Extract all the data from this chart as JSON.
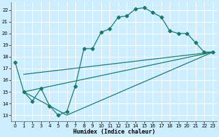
{
  "xlabel": "Humidex (Indice chaleur)",
  "background_color": "#cceeff",
  "grid_color": "#ffffff",
  "line_color": "#1a7a6a",
  "xlim": [
    -0.5,
    23.5
  ],
  "ylim": [
    12.5,
    22.7
  ],
  "xticks": [
    0,
    1,
    2,
    3,
    4,
    5,
    6,
    7,
    8,
    9,
    10,
    11,
    12,
    13,
    14,
    15,
    16,
    17,
    18,
    19,
    20,
    21,
    22,
    23
  ],
  "yticks": [
    13,
    14,
    15,
    16,
    17,
    18,
    19,
    20,
    21,
    22
  ],
  "curve1_x": [
    0,
    1,
    2,
    3,
    4,
    5,
    6,
    7,
    8,
    9,
    10,
    11,
    12,
    13,
    14,
    15,
    16,
    17,
    18,
    19,
    20,
    21,
    22,
    23
  ],
  "curve1_y": [
    17.5,
    15.0,
    14.2,
    15.3,
    13.8,
    13.0,
    13.3,
    15.5,
    18.7,
    18.7,
    20.1,
    20.4,
    21.4,
    21.5,
    22.1,
    22.2,
    21.8,
    21.4,
    20.2,
    20.0,
    20.0,
    19.2,
    18.4,
    18.4
  ],
  "line1_x": [
    1,
    23
  ],
  "line1_y": [
    15.0,
    18.4
  ],
  "line2_x": [
    1,
    6,
    23
  ],
  "line2_y": [
    15.0,
    13.0,
    18.4
  ],
  "line3_x": [
    1,
    23
  ],
  "line3_y": [
    16.5,
    18.4
  ],
  "marker_size": 2.5,
  "line_width": 0.9,
  "xlabel_fontsize": 6,
  "tick_fontsize": 5.0
}
